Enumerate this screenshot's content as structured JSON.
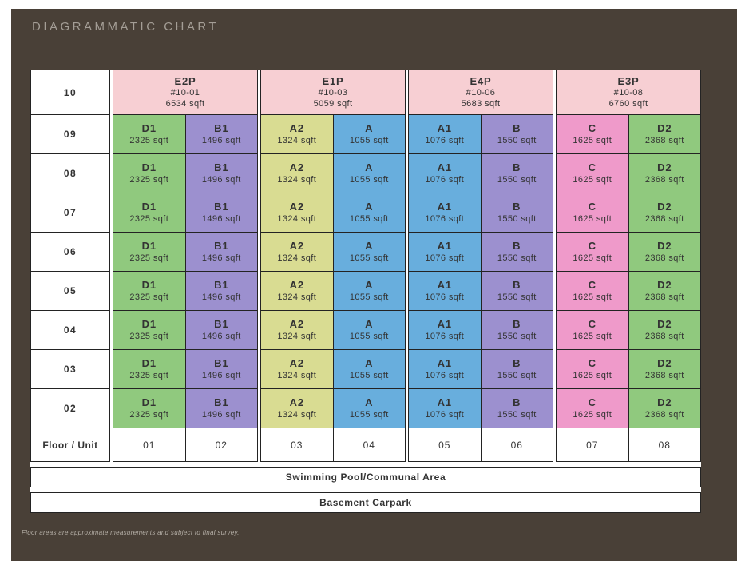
{
  "title": "DIAGRAMMATIC CHART",
  "footnote": "Floor areas are approximate measurements and subject to final survey.",
  "colors": {
    "board_background": "#494037",
    "page_background": "#ffffff",
    "penthouse": "#f7cfd3",
    "green": "#90c97e",
    "purple": "#9c90cf",
    "yellow": "#d9dc92",
    "blue": "#68aedd",
    "magenta": "#ef9aca",
    "cell_border": "#232323",
    "cell_text": "#333333",
    "title_text": "#a49e96",
    "footnote_text": "#b5afa7"
  },
  "chart": {
    "penthouse_floor": "10",
    "penthouses": [
      {
        "name": "E2P",
        "unit_no": "#10-01",
        "area": "6534 sqft"
      },
      {
        "name": "E1P",
        "unit_no": "#10-03",
        "area": "5059 sqft"
      },
      {
        "name": "E4P",
        "unit_no": "#10-06",
        "area": "5683 sqft"
      },
      {
        "name": "E3P",
        "unit_no": "#10-08",
        "area": "6760 sqft"
      }
    ],
    "floors": [
      "09",
      "08",
      "07",
      "06",
      "05",
      "04",
      "03",
      "02"
    ],
    "unit_types": [
      {
        "name": "D1",
        "area": "2325 sqft",
        "color": "green"
      },
      {
        "name": "B1",
        "area": "1496 sqft",
        "color": "purple"
      },
      {
        "name": "A2",
        "area": "1324 sqft",
        "color": "yellow"
      },
      {
        "name": "A",
        "area": "1055 sqft",
        "color": "blue"
      },
      {
        "name": "A1",
        "area": "1076 sqft",
        "color": "blue"
      },
      {
        "name": "B",
        "area": "1550 sqft",
        "color": "purple"
      },
      {
        "name": "C",
        "area": "1625 sqft",
        "color": "magenta"
      },
      {
        "name": "D2",
        "area": "2368 sqft",
        "color": "green"
      }
    ],
    "footer_row_label": "Floor / Unit",
    "unit_numbers": [
      "01",
      "02",
      "03",
      "04",
      "05",
      "06",
      "07",
      "08"
    ],
    "bands": [
      "Swimming Pool/Communal Area",
      "Basement Carpark"
    ]
  }
}
